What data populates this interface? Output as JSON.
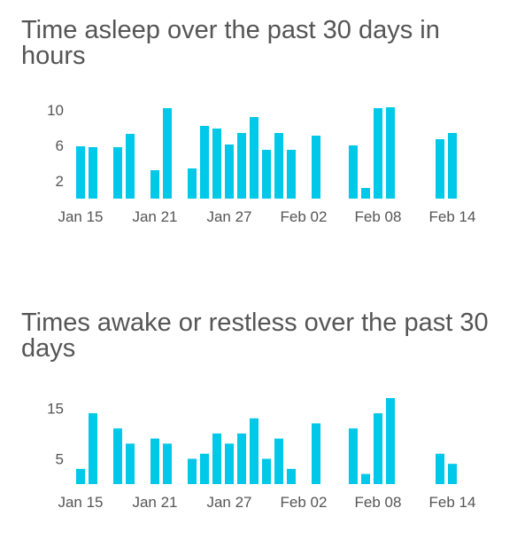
{
  "colors": {
    "bar": "#00c8e8",
    "text": "#555555"
  },
  "chart_data": [
    {
      "type": "bar",
      "title": "Time asleep over the past 30 days in hours",
      "x_ticks": [
        "Jan 15",
        "Jan 21",
        "Jan 27",
        "Feb 02",
        "Feb 08",
        "Feb 14"
      ],
      "y_ticks": [
        2,
        6,
        10
      ],
      "ylim": [
        0,
        10.5
      ],
      "dates": [
        "Jan 15",
        "Jan 16",
        "Jan 17",
        "Jan 18",
        "Jan 19",
        "Jan 20",
        "Jan 21",
        "Jan 22",
        "Jan 23",
        "Jan 24",
        "Jan 25",
        "Jan 26",
        "Jan 27",
        "Jan 28",
        "Jan 29",
        "Jan 30",
        "Jan 31",
        "Feb 01",
        "Feb 02",
        "Feb 03",
        "Feb 04",
        "Feb 05",
        "Feb 06",
        "Feb 07",
        "Feb 08",
        "Feb 09",
        "Feb 10",
        "Feb 11",
        "Feb 12",
        "Feb 13",
        "Feb 14"
      ],
      "values": [
        5.9,
        5.8,
        null,
        5.8,
        7.3,
        null,
        3.2,
        10.2,
        null,
        3.4,
        8.2,
        7.9,
        6.1,
        7.4,
        9.2,
        5.5,
        7.4,
        5.5,
        null,
        7.1,
        null,
        null,
        6.0,
        1.2,
        10.2,
        10.3,
        null,
        null,
        null,
        6.7,
        7.4
      ]
    },
    {
      "type": "bar",
      "title": "Times awake or restless over the past 30 days",
      "x_ticks": [
        "Jan 15",
        "Jan 21",
        "Jan 27",
        "Feb 02",
        "Feb 08",
        "Feb 14"
      ],
      "y_ticks": [
        5,
        15
      ],
      "ylim": [
        0,
        17
      ],
      "dates": [
        "Jan 15",
        "Jan 16",
        "Jan 17",
        "Jan 18",
        "Jan 19",
        "Jan 20",
        "Jan 21",
        "Jan 22",
        "Jan 23",
        "Jan 24",
        "Jan 25",
        "Jan 26",
        "Jan 27",
        "Jan 28",
        "Jan 29",
        "Jan 30",
        "Jan 31",
        "Feb 01",
        "Feb 02",
        "Feb 03",
        "Feb 04",
        "Feb 05",
        "Feb 06",
        "Feb 07",
        "Feb 08",
        "Feb 09",
        "Feb 10",
        "Feb 11",
        "Feb 12",
        "Feb 13",
        "Feb 14"
      ],
      "values": [
        3,
        14,
        null,
        11,
        8,
        null,
        9,
        8,
        null,
        5,
        6,
        10,
        8,
        10,
        13,
        5,
        9,
        3,
        null,
        12,
        null,
        null,
        11,
        2,
        14,
        17,
        null,
        null,
        null,
        6,
        4
      ]
    }
  ]
}
